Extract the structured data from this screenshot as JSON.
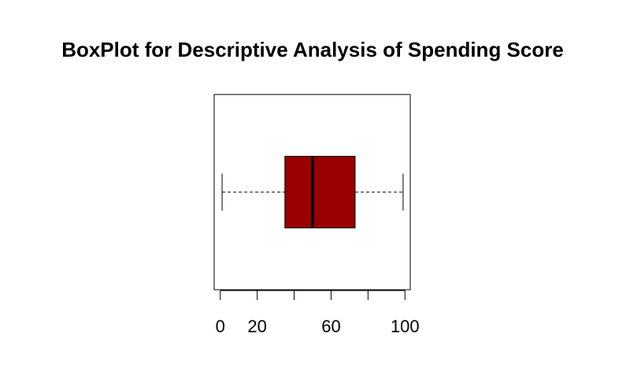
{
  "chart_data": {
    "type": "boxplot",
    "orientation": "horizontal",
    "title": "BoxPlot for Descriptive Analysis of Spending Score",
    "xlabel": "",
    "ylabel": "",
    "xlim": [
      0,
      100
    ],
    "grid": false,
    "series": [
      {
        "min": 1,
        "q1": 35,
        "median": 50,
        "q3": 73,
        "max": 99
      }
    ],
    "box_color": "#990000",
    "x_ticks": [
      0,
      20,
      40,
      60,
      80,
      100
    ],
    "x_tick_labels": [
      "0",
      "20",
      "",
      "60",
      "",
      "100"
    ]
  }
}
